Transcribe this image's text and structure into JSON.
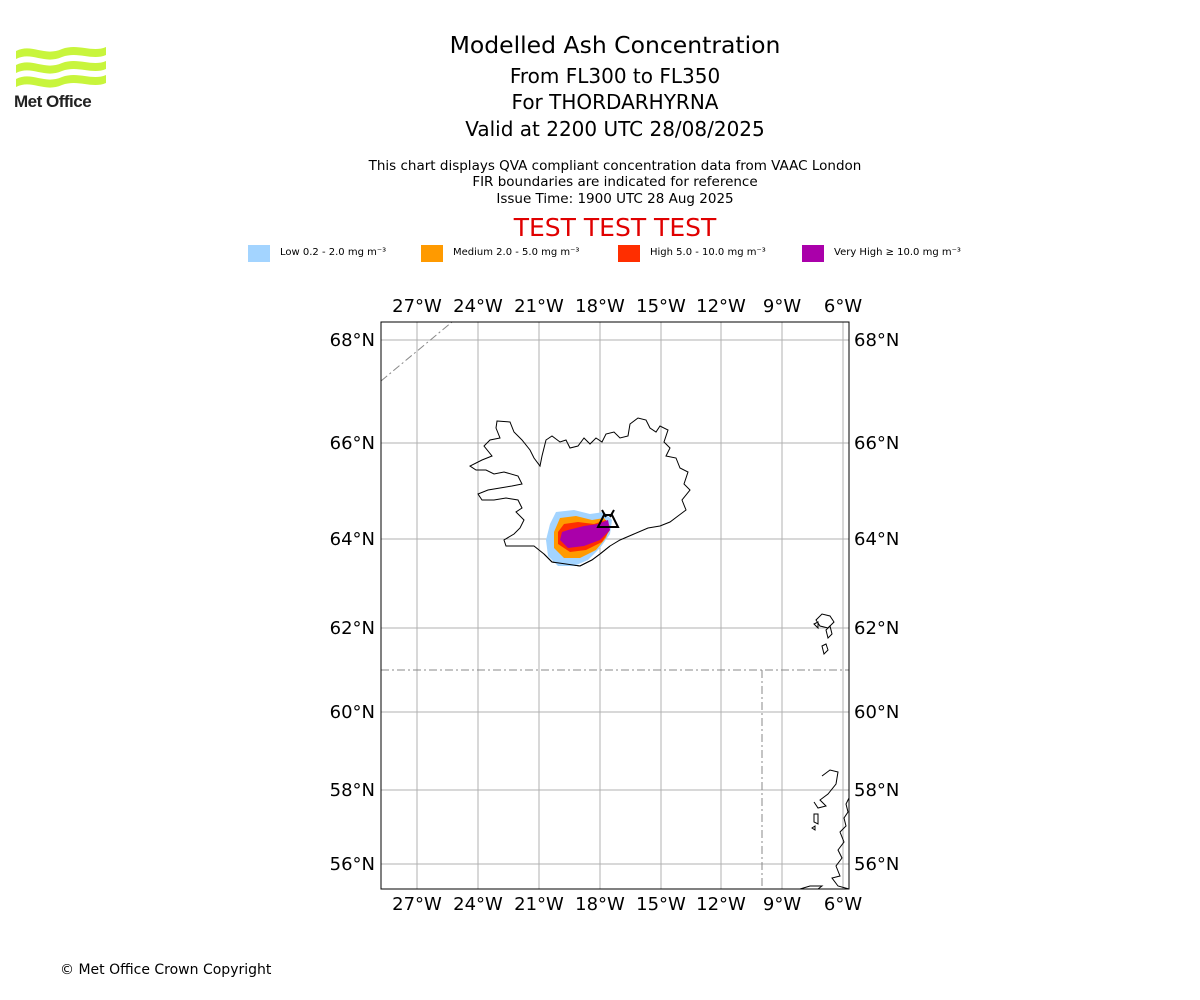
{
  "header": {
    "logo_text": "Met Office",
    "title": "Modelled Ash Concentration",
    "line2": "From FL300 to FL350",
    "line3": "For THORDARHYRNA",
    "line4": "Valid at 2200 UTC 28/08/2025",
    "note1": "This chart displays QVA compliant concentration data from VAAC London",
    "note2": "FIR boundaries are indicated for reference",
    "note3": "Issue Time: 1900 UTC 28 Aug 2025",
    "test_banner": "TEST TEST TEST"
  },
  "legend": [
    {
      "label": "Low 0.2 - 2.0 mg m⁻³",
      "color": "#a3d4ff"
    },
    {
      "label": "Medium 2.0 - 5.0 mg m⁻³",
      "color": "#ff9a00"
    },
    {
      "label": "High 5.0 - 10.0 mg m⁻³",
      "color": "#ff2e00"
    },
    {
      "label": "Very High ≥ 10.0 mg m⁻³",
      "color": "#aa00aa"
    }
  ],
  "map": {
    "lon_labels": [
      "27°W",
      "24°W",
      "21°W",
      "18°W",
      "15°W",
      "12°W",
      "9°W",
      "6°W"
    ],
    "lat_labels": [
      "68°N",
      "66°N",
      "64°N",
      "62°N",
      "60°N",
      "58°N",
      "56°N"
    ],
    "volcano_icon": "volcano-icon"
  },
  "footer": {
    "copyright": "© Met Office Crown Copyright"
  }
}
